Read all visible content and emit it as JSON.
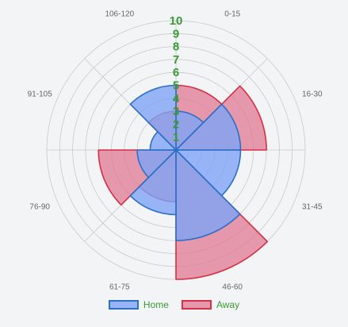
{
  "chart_data": {
    "type": "polar-area",
    "categories": [
      "0-15",
      "16-30",
      "31-45",
      "46-60",
      "61-75",
      "76-90",
      "91-105",
      "106-120"
    ],
    "series": [
      {
        "name": "Home",
        "values": [
          3,
          5,
          5,
          7,
          5,
          3,
          2,
          5
        ],
        "fill": "rgba(126,164,246,0.8)",
        "stroke": "#2c6fc7"
      },
      {
        "name": "Away",
        "values": [
          5,
          7,
          0,
          10,
          4,
          6,
          0,
          3
        ],
        "fill": "rgba(224,120,146,0.75)",
        "stroke": "#d32f45"
      }
    ],
    "r_ticks": [
      "1",
      "2",
      "3",
      "4",
      "5",
      "6",
      "7",
      "8",
      "9",
      "10"
    ],
    "r_max": 10,
    "grid": true,
    "legend": "bottom",
    "tick_color": "#3a9a35",
    "label_color": "#666666",
    "grid_color": "#c9c9c9"
  }
}
